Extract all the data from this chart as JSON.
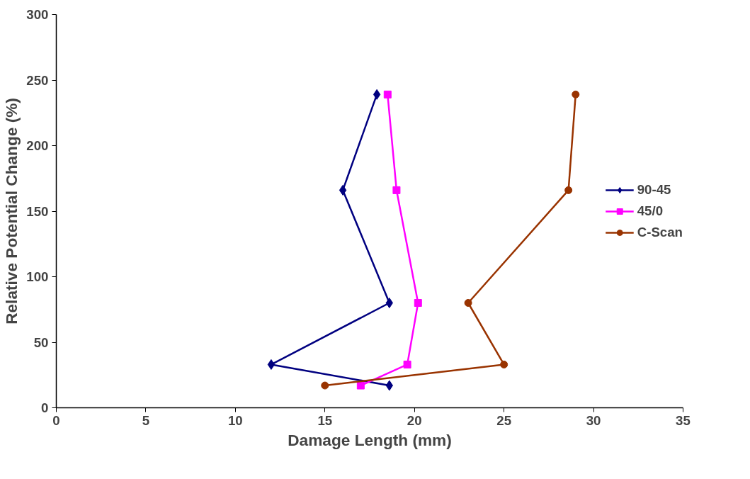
{
  "chart_data": {
    "type": "line",
    "xlabel": "Damage Length (mm)",
    "ylabel": "Relative Potential Change (%)",
    "xlim": [
      0,
      35
    ],
    "ylim": [
      0,
      300
    ],
    "xticks": [
      0,
      5,
      10,
      15,
      20,
      25,
      30,
      35
    ],
    "yticks": [
      0,
      50,
      100,
      150,
      200,
      250,
      300
    ],
    "grid": false,
    "legend": "right",
    "series": [
      {
        "name": "90-45",
        "color": "#000080",
        "marker": "diamond",
        "x": [
          17.9,
          16.0,
          18.6,
          12.0,
          18.6
        ],
        "values": [
          239,
          166,
          80,
          33,
          17
        ]
      },
      {
        "name": "45/0",
        "color": "#ff00ff",
        "marker": "square",
        "x": [
          18.5,
          19.0,
          20.2,
          19.6,
          17.0
        ],
        "values": [
          239,
          166,
          80,
          33,
          17
        ]
      },
      {
        "name": "C-Scan",
        "color": "#993300",
        "marker": "circle",
        "x": [
          29.0,
          28.6,
          23.0,
          25.0,
          15.0
        ],
        "values": [
          239,
          166,
          80,
          33,
          17
        ]
      }
    ]
  }
}
